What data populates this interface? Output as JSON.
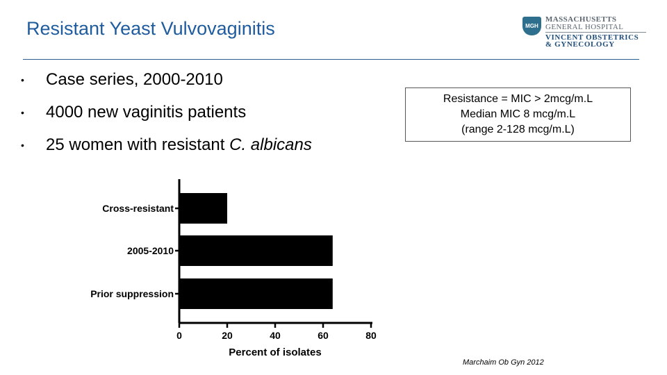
{
  "slide": {
    "title": "Resistant Yeast Vulvovaginitis",
    "bullets": [
      {
        "text": "Case series, 2000-2010"
      },
      {
        "text": "4000 new vaginitis patients"
      },
      {
        "text": "25 women with resistant ",
        "italic": "C. albicans"
      }
    ],
    "bullet_glyph": "•",
    "callout": {
      "lines": [
        "Resistance = MIC > 2mcg/m.L",
        "Median MIC 8 mcg/m.L",
        "(range 2-128 mcg/m.L)"
      ]
    },
    "citation": "Marchaim Ob Gyn 2012",
    "logo": {
      "seal_text": "MGH",
      "line1": "MASSACHUSETTS",
      "line2": "GENERAL HOSPITAL",
      "line3": "VINCENT OBSTETRICS",
      "line4": "& GYNECOLOGY"
    }
  },
  "chart_data": {
    "type": "bar",
    "orientation": "horizontal",
    "categories": [
      "Cross-resistant",
      "2005-2010",
      "Prior suppression"
    ],
    "values": [
      20,
      64,
      64
    ],
    "xlabel": "Percent of isolates",
    "ylabel": "",
    "xlim": [
      0,
      80
    ],
    "xticks": [
      0,
      20,
      40,
      60,
      80
    ],
    "bar_color": "#000000",
    "grid": false
  }
}
